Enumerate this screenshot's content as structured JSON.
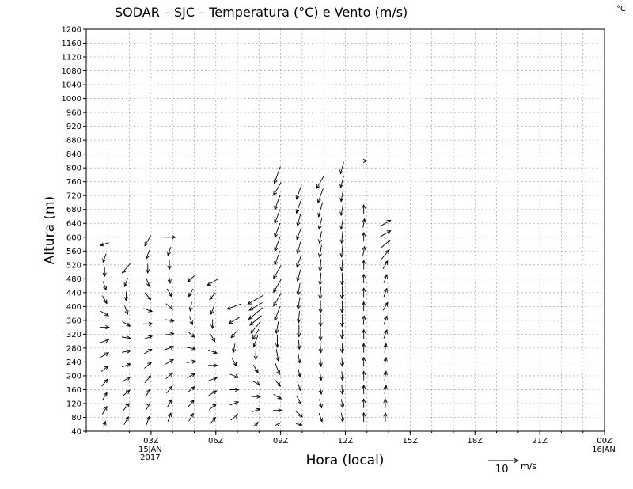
{
  "chart_data": {
    "type": "vector-field",
    "title": "SODAR – SJC – Temperatura (°C) e Vento (m/s)",
    "corner_unit": "°C",
    "xlabel": "Hora (local)",
    "ylabel": "Altura (m)",
    "ylim": [
      40,
      1200
    ],
    "y_ticks": [
      40,
      80,
      120,
      160,
      200,
      240,
      280,
      320,
      360,
      400,
      440,
      480,
      520,
      560,
      600,
      640,
      680,
      720,
      760,
      800,
      840,
      880,
      920,
      960,
      1000,
      1040,
      1080,
      1120,
      1160,
      1200
    ],
    "x_ticks": [
      {
        "label": "03Z",
        "sub": [
          "15JAN",
          "2017"
        ],
        "hour": 3
      },
      {
        "label": "06Z",
        "sub": [],
        "hour": 6
      },
      {
        "label": "09Z",
        "sub": [],
        "hour": 9
      },
      {
        "label": "12Z",
        "sub": [],
        "hour": 12
      },
      {
        "label": "15Z",
        "sub": [],
        "hour": 15
      },
      {
        "label": "18Z",
        "sub": [],
        "hour": 18
      },
      {
        "label": "21Z",
        "sub": [],
        "hour": 21
      },
      {
        "label": "00Z",
        "sub": [
          "16JAN"
        ],
        "hour": 24
      }
    ],
    "xlim": [
      0,
      24
    ],
    "grid": true,
    "reference_vector": {
      "speed": 10,
      "unit": "m/s",
      "label": "10"
    },
    "profiles": [
      {
        "hour": 0.85,
        "top": 580,
        "bottom": 60,
        "winds": [
          [
            580,
            250,
            3
          ],
          [
            540,
            200,
            3
          ],
          [
            500,
            180,
            3
          ],
          [
            460,
            160,
            3
          ],
          [
            420,
            150,
            3
          ],
          [
            380,
            120,
            3
          ],
          [
            340,
            90,
            3
          ],
          [
            300,
            70,
            3
          ],
          [
            260,
            60,
            3
          ],
          [
            220,
            50,
            3
          ],
          [
            180,
            40,
            3
          ],
          [
            140,
            30,
            3
          ],
          [
            100,
            30,
            3
          ],
          [
            60,
            20,
            2
          ]
        ]
      },
      {
        "hour": 1.85,
        "top": 510,
        "bottom": 60,
        "winds": [
          [
            510,
            220,
            4
          ],
          [
            470,
            200,
            3
          ],
          [
            430,
            180,
            3
          ],
          [
            390,
            160,
            3
          ],
          [
            350,
            120,
            3
          ],
          [
            310,
            100,
            3
          ],
          [
            270,
            80,
            3
          ],
          [
            230,
            70,
            3
          ],
          [
            190,
            60,
            3
          ],
          [
            150,
            50,
            3
          ],
          [
            110,
            40,
            3
          ],
          [
            70,
            30,
            3
          ]
        ]
      },
      {
        "hour": 2.85,
        "top": 590,
        "bottom": 60,
        "winds": [
          [
            590,
            210,
            4
          ],
          [
            550,
            200,
            3
          ],
          [
            510,
            180,
            3
          ],
          [
            470,
            160,
            3
          ],
          [
            430,
            140,
            3
          ],
          [
            390,
            110,
            3
          ],
          [
            350,
            90,
            3
          ],
          [
            310,
            70,
            3
          ],
          [
            270,
            60,
            3
          ],
          [
            230,
            50,
            3
          ],
          [
            190,
            40,
            3
          ],
          [
            150,
            30,
            3
          ],
          [
            110,
            30,
            3
          ],
          [
            70,
            20,
            3
          ]
        ]
      },
      {
        "hour": 3.85,
        "top": 600,
        "bottom": 60,
        "winds": [
          [
            600,
            90,
            4
          ],
          [
            560,
            200,
            3
          ],
          [
            520,
            180,
            3
          ],
          [
            480,
            170,
            3
          ],
          [
            440,
            150,
            3
          ],
          [
            400,
            130,
            3
          ],
          [
            360,
            100,
            3
          ],
          [
            320,
            80,
            3
          ],
          [
            280,
            70,
            3
          ],
          [
            240,
            60,
            3
          ],
          [
            200,
            50,
            3
          ],
          [
            160,
            40,
            3
          ],
          [
            120,
            30,
            3
          ],
          [
            80,
            20,
            3
          ]
        ]
      },
      {
        "hour": 4.85,
        "top": 480,
        "bottom": 60,
        "winds": [
          [
            480,
            230,
            3
          ],
          [
            440,
            210,
            3
          ],
          [
            400,
            190,
            3
          ],
          [
            360,
            160,
            3
          ],
          [
            320,
            130,
            3
          ],
          [
            280,
            100,
            3
          ],
          [
            240,
            80,
            3
          ],
          [
            200,
            60,
            3
          ],
          [
            160,
            50,
            3
          ],
          [
            120,
            40,
            3
          ],
          [
            80,
            30,
            3
          ]
        ]
      },
      {
        "hour": 5.85,
        "top": 470,
        "bottom": 60,
        "winds": [
          [
            470,
            240,
            4
          ],
          [
            430,
            220,
            3
          ],
          [
            390,
            200,
            3
          ],
          [
            350,
            180,
            3
          ],
          [
            310,
            150,
            3
          ],
          [
            270,
            110,
            3
          ],
          [
            230,
            90,
            3
          ],
          [
            190,
            70,
            3
          ],
          [
            150,
            60,
            3
          ],
          [
            110,
            50,
            3
          ],
          [
            70,
            40,
            3
          ]
        ]
      },
      {
        "hour": 6.85,
        "top": 400,
        "bottom": 60,
        "winds": [
          [
            400,
            250,
            5
          ],
          [
            360,
            240,
            4
          ],
          [
            320,
            220,
            3
          ],
          [
            280,
            190,
            3
          ],
          [
            240,
            150,
            3
          ],
          [
            200,
            110,
            3
          ],
          [
            160,
            90,
            3
          ],
          [
            120,
            70,
            3
          ],
          [
            80,
            50,
            3
          ]
        ]
      },
      {
        "hour": 7.85,
        "top": 420,
        "bottom": 60,
        "winds": [
          [
            420,
            240,
            6
          ],
          [
            400,
            240,
            5
          ],
          [
            380,
            230,
            6
          ],
          [
            360,
            230,
            5
          ],
          [
            340,
            220,
            5
          ],
          [
            320,
            210,
            4
          ],
          [
            300,
            200,
            4
          ],
          [
            260,
            180,
            3
          ],
          [
            220,
            150,
            3
          ],
          [
            180,
            120,
            3
          ],
          [
            140,
            90,
            3
          ],
          [
            100,
            70,
            3
          ],
          [
            60,
            50,
            2
          ]
        ]
      },
      {
        "hour": 8.85,
        "top": 780,
        "bottom": 60,
        "winds": [
          [
            780,
            200,
            6
          ],
          [
            740,
            210,
            5
          ],
          [
            700,
            200,
            5
          ],
          [
            660,
            200,
            5
          ],
          [
            620,
            200,
            5
          ],
          [
            580,
            200,
            5
          ],
          [
            540,
            200,
            5
          ],
          [
            500,
            210,
            5
          ],
          [
            460,
            210,
            5
          ],
          [
            420,
            210,
            5
          ],
          [
            380,
            200,
            5
          ],
          [
            340,
            190,
            4
          ],
          [
            300,
            180,
            4
          ],
          [
            260,
            170,
            4
          ],
          [
            220,
            160,
            4
          ],
          [
            180,
            140,
            3
          ],
          [
            140,
            120,
            3
          ],
          [
            100,
            90,
            3
          ],
          [
            60,
            60,
            2
          ]
        ]
      },
      {
        "hour": 9.85,
        "top": 730,
        "bottom": 60,
        "winds": [
          [
            730,
            200,
            5
          ],
          [
            690,
            200,
            5
          ],
          [
            650,
            195,
            4
          ],
          [
            610,
            200,
            4
          ],
          [
            570,
            195,
            4
          ],
          [
            530,
            200,
            4
          ],
          [
            490,
            195,
            4
          ],
          [
            450,
            190,
            4
          ],
          [
            410,
            190,
            4
          ],
          [
            370,
            185,
            4
          ],
          [
            330,
            180,
            4
          ],
          [
            290,
            175,
            3
          ],
          [
            250,
            170,
            3
          ],
          [
            210,
            165,
            3
          ],
          [
            170,
            160,
            3
          ],
          [
            130,
            150,
            3
          ],
          [
            90,
            130,
            3
          ],
          [
            60,
            100,
            2
          ]
        ]
      },
      {
        "hour": 10.85,
        "top": 760,
        "bottom": 60,
        "winds": [
          [
            760,
            210,
            5
          ],
          [
            720,
            200,
            5
          ],
          [
            680,
            195,
            5
          ],
          [
            640,
            195,
            4
          ],
          [
            600,
            190,
            4
          ],
          [
            560,
            190,
            4
          ],
          [
            520,
            185,
            4
          ],
          [
            480,
            185,
            4
          ],
          [
            440,
            185,
            4
          ],
          [
            400,
            180,
            4
          ],
          [
            360,
            180,
            4
          ],
          [
            320,
            180,
            4
          ],
          [
            280,
            175,
            3
          ],
          [
            240,
            175,
            3
          ],
          [
            200,
            170,
            3
          ],
          [
            160,
            170,
            3
          ],
          [
            120,
            165,
            3
          ],
          [
            80,
            160,
            3
          ]
        ]
      },
      {
        "hour": 11.85,
        "top": 800,
        "bottom": 60,
        "winds": [
          [
            800,
            195,
            4
          ],
          [
            760,
            195,
            4
          ],
          [
            720,
            190,
            4
          ],
          [
            680,
            190,
            4
          ],
          [
            640,
            190,
            4
          ],
          [
            600,
            185,
            4
          ],
          [
            560,
            185,
            4
          ],
          [
            520,
            185,
            4
          ],
          [
            480,
            180,
            4
          ],
          [
            440,
            180,
            4
          ],
          [
            400,
            180,
            4
          ],
          [
            360,
            180,
            4
          ],
          [
            320,
            180,
            3
          ],
          [
            280,
            180,
            3
          ],
          [
            240,
            175,
            3
          ],
          [
            200,
            175,
            3
          ],
          [
            160,
            175,
            3
          ],
          [
            120,
            170,
            3
          ],
          [
            80,
            170,
            3
          ]
        ]
      },
      {
        "hour": 12.85,
        "top": 820,
        "bottom": 60,
        "winds": [
          [
            820,
            90,
            2
          ],
          [
            680,
            0,
            3
          ],
          [
            640,
            10,
            3
          ],
          [
            600,
            0,
            3
          ],
          [
            560,
            10,
            3
          ],
          [
            520,
            0,
            3
          ],
          [
            480,
            0,
            3
          ],
          [
            440,
            0,
            3
          ],
          [
            400,
            0,
            3
          ],
          [
            360,
            5,
            3
          ],
          [
            320,
            0,
            3
          ],
          [
            280,
            0,
            3
          ],
          [
            240,
            0,
            3
          ],
          [
            200,
            0,
            3
          ],
          [
            160,
            0,
            3
          ],
          [
            120,
            0,
            3
          ],
          [
            80,
            0,
            3
          ]
        ]
      },
      {
        "hour": 13.85,
        "top": 640,
        "bottom": 60,
        "winds": [
          [
            640,
            60,
            4
          ],
          [
            610,
            60,
            4
          ],
          [
            580,
            50,
            4
          ],
          [
            550,
            40,
            4
          ],
          [
            520,
            30,
            3
          ],
          [
            480,
            20,
            3
          ],
          [
            440,
            20,
            3
          ],
          [
            400,
            30,
            3
          ],
          [
            360,
            20,
            3
          ],
          [
            320,
            20,
            3
          ],
          [
            280,
            10,
            3
          ],
          [
            240,
            10,
            3
          ],
          [
            200,
            10,
            3
          ],
          [
            160,
            10,
            3
          ],
          [
            120,
            0,
            3
          ],
          [
            80,
            0,
            3
          ]
        ]
      }
    ]
  }
}
